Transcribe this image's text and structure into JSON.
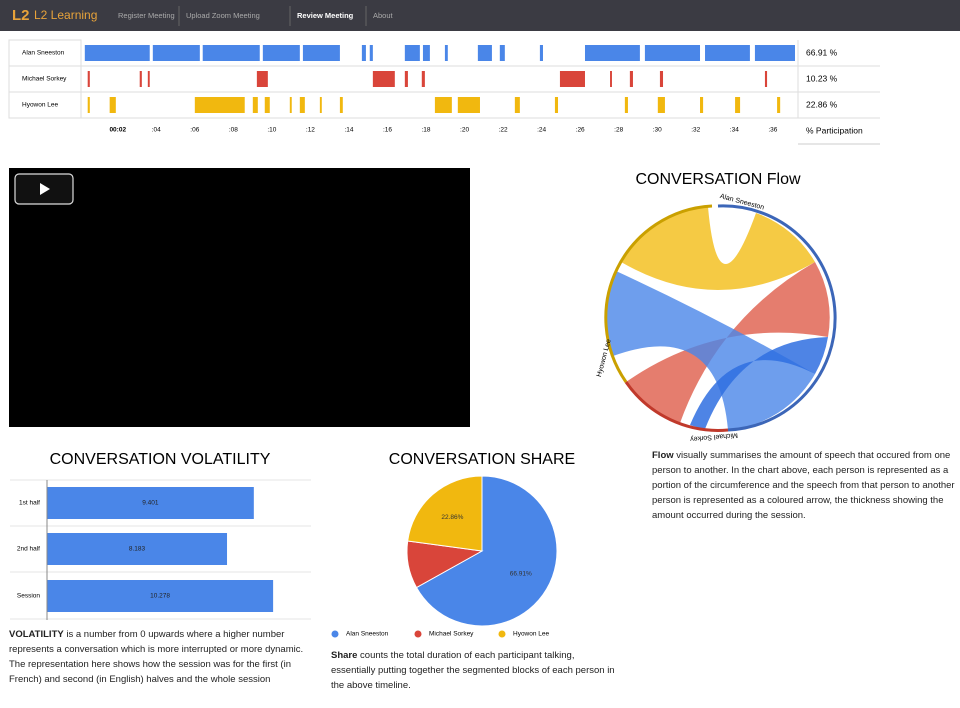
{
  "nav": {
    "logo": "L2 Learning",
    "items": [
      "Register Meeting",
      "Upload Zoom Meeting",
      "Review Meeting",
      "About"
    ],
    "active": 2
  },
  "timeline": {
    "xlim": [
      0.3,
      37.15
    ],
    "xticks": [
      {
        "value": 2,
        "label": "00:02"
      },
      {
        "value": 4,
        "label": ":04"
      },
      {
        "value": 6,
        "label": ":06"
      },
      {
        "value": 8,
        "label": ":08"
      },
      {
        "value": 10,
        "label": ":10"
      },
      {
        "value": 12,
        "label": ":12"
      },
      {
        "value": 14,
        "label": ":14"
      },
      {
        "value": 16,
        "label": ":16"
      },
      {
        "value": 18,
        "label": ":18"
      },
      {
        "value": 20,
        "label": ":20"
      },
      {
        "value": 22,
        "label": ":22"
      },
      {
        "value": 24,
        "label": ":24"
      },
      {
        "value": 26,
        "label": ":26"
      },
      {
        "value": 28,
        "label": ":28"
      },
      {
        "value": 30,
        "label": ":30"
      },
      {
        "value": 32,
        "label": ":32"
      },
      {
        "value": 34,
        "label": ":34"
      },
      {
        "value": 36,
        "label": ":36"
      }
    ],
    "participation_label": "% Participation",
    "participants": [
      {
        "name": "Alan Sneeston",
        "color": "#4a86e8",
        "participation": "66.91 %",
        "segments": [
          [
            0.29,
            3.66
          ],
          [
            3.82,
            6.26
          ],
          [
            6.41,
            9.37
          ],
          [
            9.53,
            11.45
          ],
          [
            11.61,
            13.53
          ],
          [
            14.67,
            14.88
          ],
          [
            15.08,
            15.24
          ],
          [
            16.9,
            17.68
          ],
          [
            17.84,
            18.2
          ],
          [
            18.98,
            19.13
          ],
          [
            20.69,
            21.42
          ],
          [
            21.83,
            22.09
          ],
          [
            23.91,
            24.07
          ],
          [
            26.25,
            29.1
          ],
          [
            29.36,
            32.22
          ],
          [
            32.48,
            34.81
          ],
          [
            35.07,
            37.15
          ]
        ]
      },
      {
        "name": "Michael Sorkey",
        "color": "#d9453a",
        "participation": "10.23 %",
        "segments": [
          [
            0.44,
            0.55
          ],
          [
            3.14,
            3.25
          ],
          [
            3.56,
            3.66
          ],
          [
            9.22,
            9.79
          ],
          [
            15.24,
            16.38
          ],
          [
            16.9,
            17.06
          ],
          [
            17.78,
            17.94
          ],
          [
            24.95,
            26.25
          ],
          [
            27.55,
            27.65
          ],
          [
            28.58,
            28.74
          ],
          [
            30.14,
            30.3
          ],
          [
            35.59,
            35.7
          ]
        ]
      },
      {
        "name": "Hyowon Lee",
        "color": "#f1b80f",
        "participation": "22.86 %",
        "segments": [
          [
            0.44,
            0.55
          ],
          [
            1.58,
            1.9
          ],
          [
            6.0,
            8.59
          ],
          [
            9.01,
            9.27
          ],
          [
            9.63,
            9.89
          ],
          [
            10.93,
            11.03
          ],
          [
            11.45,
            11.71
          ],
          [
            12.49,
            12.59
          ],
          [
            13.53,
            13.68
          ],
          [
            18.46,
            19.34
          ],
          [
            19.65,
            20.8
          ],
          [
            22.61,
            22.87
          ],
          [
            24.69,
            24.85
          ],
          [
            28.32,
            28.48
          ],
          [
            30.03,
            30.4
          ],
          [
            32.22,
            32.38
          ],
          [
            34.04,
            34.3
          ],
          [
            36.22,
            36.38
          ]
        ]
      }
    ]
  },
  "flow": {
    "title": "CONVERSATION Flow",
    "description_term": "Flow",
    "description": "visually summarises the amount of speech that occured from one person to another. In the chart above, each person is represented as a portion of the circumference and the speech from that person to another person is represented as a coloured arrow, the thickness showing the amount occurred during the session."
  },
  "volatility": {
    "type": "bar",
    "title": "CONVERSATION VOLATILITY",
    "categories": [
      "1st half",
      "2nd half",
      "Session"
    ],
    "values": [
      9.401,
      8.183,
      10.278
    ],
    "xlim": [
      0,
      12
    ],
    "color": "#4a86e8",
    "description_term": "VOLATILITY",
    "description": "is a number from 0 upwards where a higher number represents a conversation which is more interrupted or more dynamic. The representation here shows how the session was for the first (in French) and second (in English) halves and the whole session"
  },
  "share": {
    "type": "pie",
    "title": "CONVERSATION SHARE",
    "categories": [
      "Alan Sneeston",
      "Michael Sorkey",
      "Hyowon Lee"
    ],
    "values": [
      66.91,
      10.23,
      22.86
    ],
    "value_labels": [
      "66.91%",
      null,
      "22.86%"
    ],
    "colors": [
      "#4a86e8",
      "#d9453a",
      "#f1b80f"
    ],
    "description_term": "Share",
    "description": "counts the total duration of each participant talking, essentially putting together the segmented blocks of each person in the above timeline."
  }
}
